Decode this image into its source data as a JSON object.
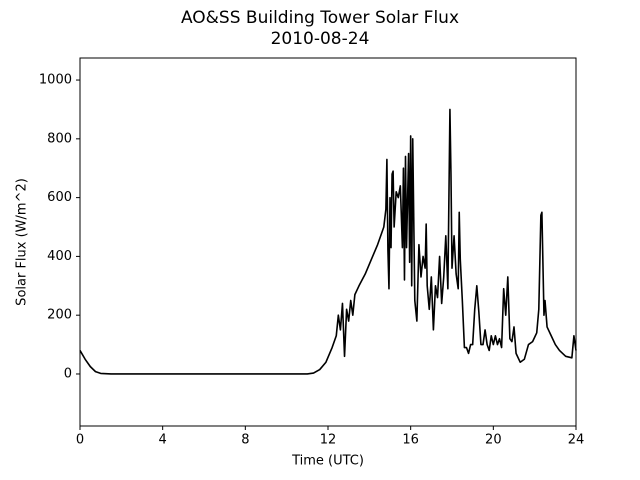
{
  "chart_data": {
    "type": "line",
    "title": "AO&SS Building Tower Solar Flux",
    "subtitle": "2010-08-24",
    "x_label": "Time (UTC)",
    "y_label": "Solar Flux (W/m^2)",
    "color": "#000000",
    "xlim": [
      0,
      24
    ],
    "xticks": [
      0,
      4,
      8,
      12,
      16,
      20,
      24
    ],
    "ylim": [
      -177,
      1075
    ],
    "yticks": [
      0,
      200,
      400,
      600,
      800,
      1000
    ],
    "grid": false,
    "x": [
      0,
      0.25,
      0.5,
      0.75,
      1,
      1.5,
      3,
      5,
      7,
      9,
      11,
      11.3,
      11.6,
      11.9,
      12.2,
      12.4,
      12.5,
      12.6,
      12.7,
      12.8,
      12.9,
      13.0,
      13.1,
      13.2,
      13.3,
      13.5,
      13.8,
      14.1,
      14.4,
      14.7,
      14.8,
      14.85,
      14.9,
      14.95,
      15.0,
      15.05,
      15.1,
      15.15,
      15.2,
      15.3,
      15.4,
      15.5,
      15.6,
      15.65,
      15.7,
      15.75,
      15.8,
      15.9,
      15.95,
      16.0,
      16.05,
      16.1,
      16.2,
      16.3,
      16.4,
      16.5,
      16.6,
      16.7,
      16.75,
      16.8,
      16.9,
      17.0,
      17.1,
      17.2,
      17.3,
      17.4,
      17.5,
      17.6,
      17.7,
      17.8,
      17.9,
      17.95,
      18.0,
      18.1,
      18.2,
      18.3,
      18.35,
      18.4,
      18.5,
      18.6,
      18.7,
      18.8,
      18.9,
      19.0,
      19.1,
      19.2,
      19.3,
      19.4,
      19.5,
      19.6,
      19.7,
      19.8,
      19.9,
      20.0,
      20.1,
      20.2,
      20.3,
      20.4,
      20.5,
      20.6,
      20.7,
      20.8,
      20.9,
      21.0,
      21.1,
      21.3,
      21.5,
      21.7,
      21.9,
      22.1,
      22.2,
      22.3,
      22.35,
      22.45,
      22.5,
      22.6,
      22.8,
      23.0,
      23.2,
      23.5,
      23.8,
      23.9,
      24
    ],
    "values": [
      80,
      50,
      25,
      8,
      2,
      0,
      0,
      0,
      0,
      0,
      0,
      3,
      15,
      40,
      90,
      130,
      200,
      150,
      240,
      60,
      220,
      180,
      250,
      200,
      270,
      300,
      340,
      390,
      440,
      500,
      560,
      730,
      420,
      290,
      600,
      430,
      680,
      690,
      500,
      620,
      600,
      640,
      430,
      700,
      320,
      740,
      430,
      750,
      380,
      810,
      300,
      800,
      250,
      180,
      440,
      330,
      400,
      360,
      510,
      300,
      220,
      330,
      150,
      300,
      260,
      400,
      240,
      330,
      470,
      290,
      900,
      680,
      360,
      470,
      340,
      290,
      550,
      390,
      250,
      90,
      90,
      70,
      100,
      100,
      220,
      300,
      210,
      100,
      100,
      150,
      100,
      80,
      130,
      100,
      130,
      100,
      120,
      90,
      290,
      200,
      330,
      120,
      110,
      160,
      70,
      40,
      50,
      100,
      110,
      140,
      220,
      540,
      550,
      200,
      250,
      160,
      130,
      100,
      80,
      60,
      55,
      130,
      80
    ]
  }
}
